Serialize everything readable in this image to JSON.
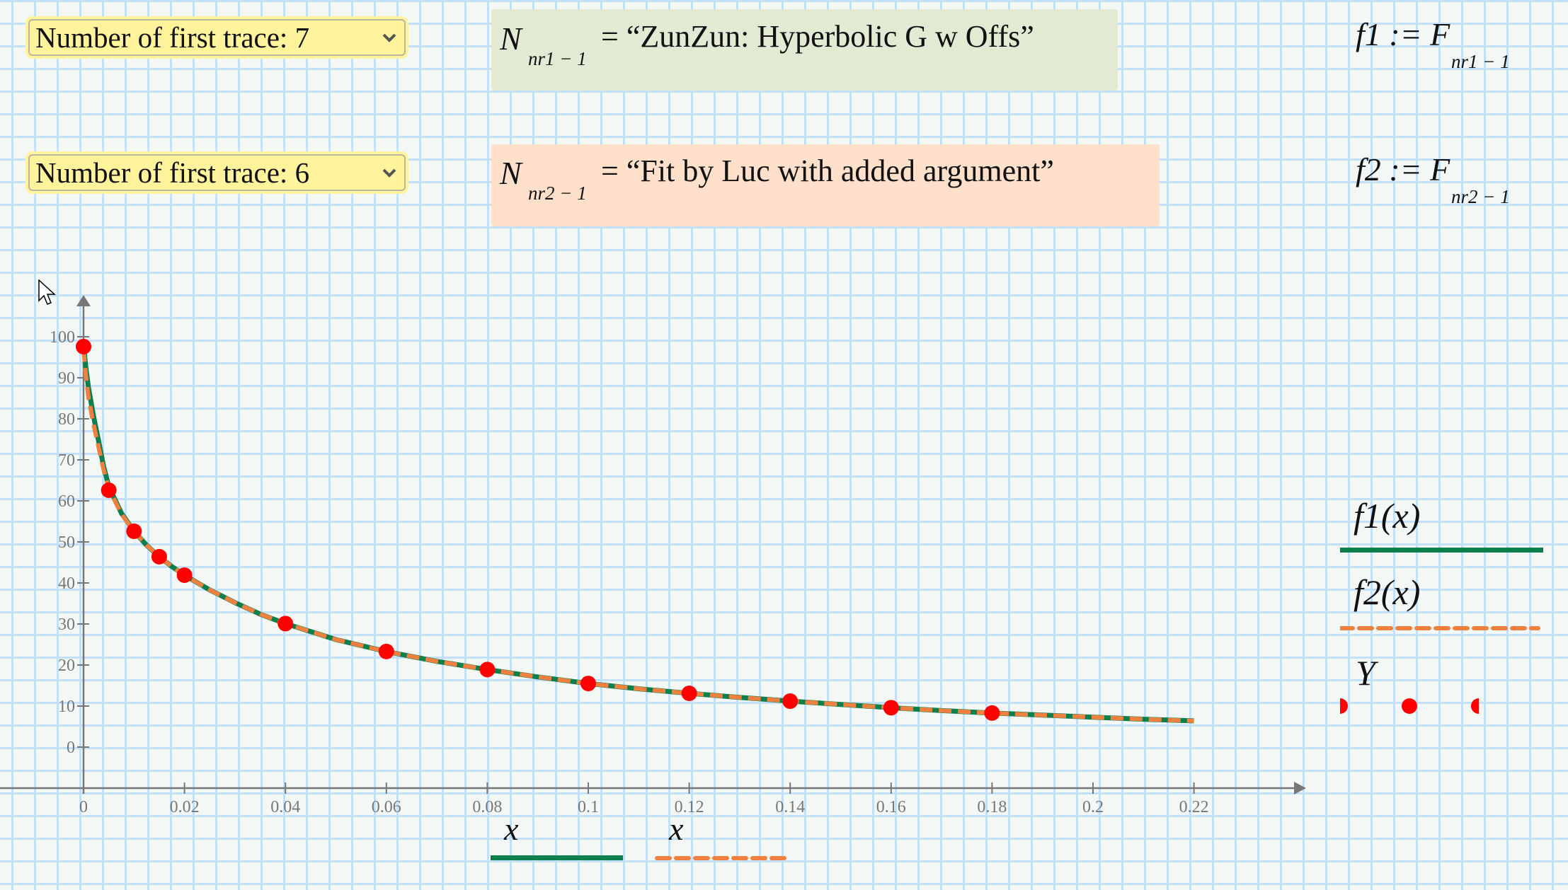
{
  "controls": {
    "trace1": {
      "label": "Number of first trace: 7",
      "value": "7"
    },
    "trace2": {
      "label": "Number of first trace: 6",
      "value": "6"
    }
  },
  "definitions": {
    "n1": {
      "symbol": "N",
      "subscript": "nr1 − 1",
      "equals": "= “ZunZun: Hyperbolic G w Offs”",
      "bg": "#e2ead4"
    },
    "n2": {
      "symbol": "N",
      "subscript": "nr2 − 1",
      "equals": "= “Fit by Luc with added argument”",
      "bg": "#ffe0cb"
    },
    "f1": {
      "lhs": "f1 := F",
      "subscript": "nr1 − 1"
    },
    "f2": {
      "lhs": "f2 := F",
      "subscript": "nr2 − 1"
    }
  },
  "legend": {
    "f1": {
      "label": "f1(x)",
      "color": "#0b7f4c",
      "style": "solid"
    },
    "f2": {
      "label": "f2(x)",
      "color": "#f08040",
      "style": "dashed"
    },
    "Y": {
      "label": "Y",
      "color": "#ff0000",
      "style": "points"
    }
  },
  "x_axis_labels": [
    {
      "label": "x",
      "trace": "f1",
      "color": "#0b7f4c",
      "style": "solid"
    },
    {
      "label": "x",
      "trace": "f2",
      "color": "#f08040",
      "style": "dashed"
    }
  ],
  "colors": {
    "grid": "#c4e0f8",
    "background": "#f4f8f4",
    "axis": "#777777",
    "dropdown_bg": "#fff39c"
  },
  "chart_data": {
    "type": "line",
    "title": "",
    "xlabel": "x",
    "ylabel": "",
    "xlim": [
      0,
      0.24
    ],
    "ylim": [
      -10,
      108
    ],
    "x_ticks": [
      "0",
      "0.02",
      "0.04",
      "0.06",
      "0.08",
      "0.1",
      "0.12",
      "0.14",
      "0.16",
      "0.18",
      "0.2",
      "0.22"
    ],
    "y_ticks": [
      "0",
      "10",
      "20",
      "30",
      "40",
      "50",
      "60",
      "70",
      "80",
      "90",
      "100"
    ],
    "grid": false,
    "legend_position": "right",
    "series": [
      {
        "name": "f1(x)",
        "kind": "line",
        "color": "#0b7f4c",
        "dash": "solid",
        "x": [
          0,
          0.0005,
          0.001,
          0.002,
          0.003,
          0.004,
          0.005,
          0.0075,
          0.01,
          0.0125,
          0.015,
          0.0175,
          0.02,
          0.025,
          0.03,
          0.035,
          0.04,
          0.05,
          0.06,
          0.07,
          0.08,
          0.09,
          0.1,
          0.11,
          0.12,
          0.13,
          0.14,
          0.15,
          0.16,
          0.17,
          0.18,
          0.19,
          0.2,
          0.21,
          0.22
        ],
        "y": [
          98,
          92,
          87.5,
          80.5,
          74.5,
          68.3,
          63.5,
          57,
          52.6,
          49.2,
          46.4,
          44,
          41.9,
          38.3,
          35.2,
          32.4,
          30.1,
          26.2,
          23.3,
          20.9,
          18.9,
          17.1,
          15.5,
          14.2,
          13.1,
          12.1,
          11.2,
          10.4,
          9.6,
          8.9,
          8.3,
          7.8,
          7.3,
          6.8,
          6.4
        ]
      },
      {
        "name": "f2(x)",
        "kind": "line",
        "color": "#f08040",
        "dash": "dashed",
        "x": [
          0,
          0.0005,
          0.001,
          0.002,
          0.003,
          0.004,
          0.005,
          0.0075,
          0.01,
          0.0125,
          0.015,
          0.0175,
          0.02,
          0.025,
          0.03,
          0.035,
          0.04,
          0.05,
          0.06,
          0.07,
          0.08,
          0.09,
          0.1,
          0.11,
          0.12,
          0.13,
          0.14,
          0.15,
          0.16,
          0.17,
          0.18,
          0.19,
          0.2,
          0.21,
          0.22
        ],
        "y": [
          97,
          90,
          85,
          78.5,
          73,
          67.5,
          63,
          56.8,
          52.6,
          49.2,
          46.4,
          44,
          41.9,
          38.3,
          35.2,
          32.4,
          30.1,
          26.2,
          23.3,
          20.9,
          18.9,
          17.1,
          15.5,
          14.2,
          13.1,
          12.1,
          11.2,
          10.4,
          9.6,
          8.9,
          8.3,
          7.8,
          7.3,
          6.8,
          6.4
        ]
      },
      {
        "name": "Y",
        "kind": "scatter",
        "color": "#ff0000",
        "x": [
          0,
          0.005,
          0.01,
          0.015,
          0.02,
          0.04,
          0.06,
          0.08,
          0.1,
          0.12,
          0.14,
          0.16,
          0.18
        ],
        "y": [
          97.6,
          62.6,
          52.6,
          46.4,
          41.9,
          30.1,
          23.3,
          18.9,
          15.5,
          13.1,
          11.2,
          9.6,
          8.3
        ]
      }
    ]
  }
}
